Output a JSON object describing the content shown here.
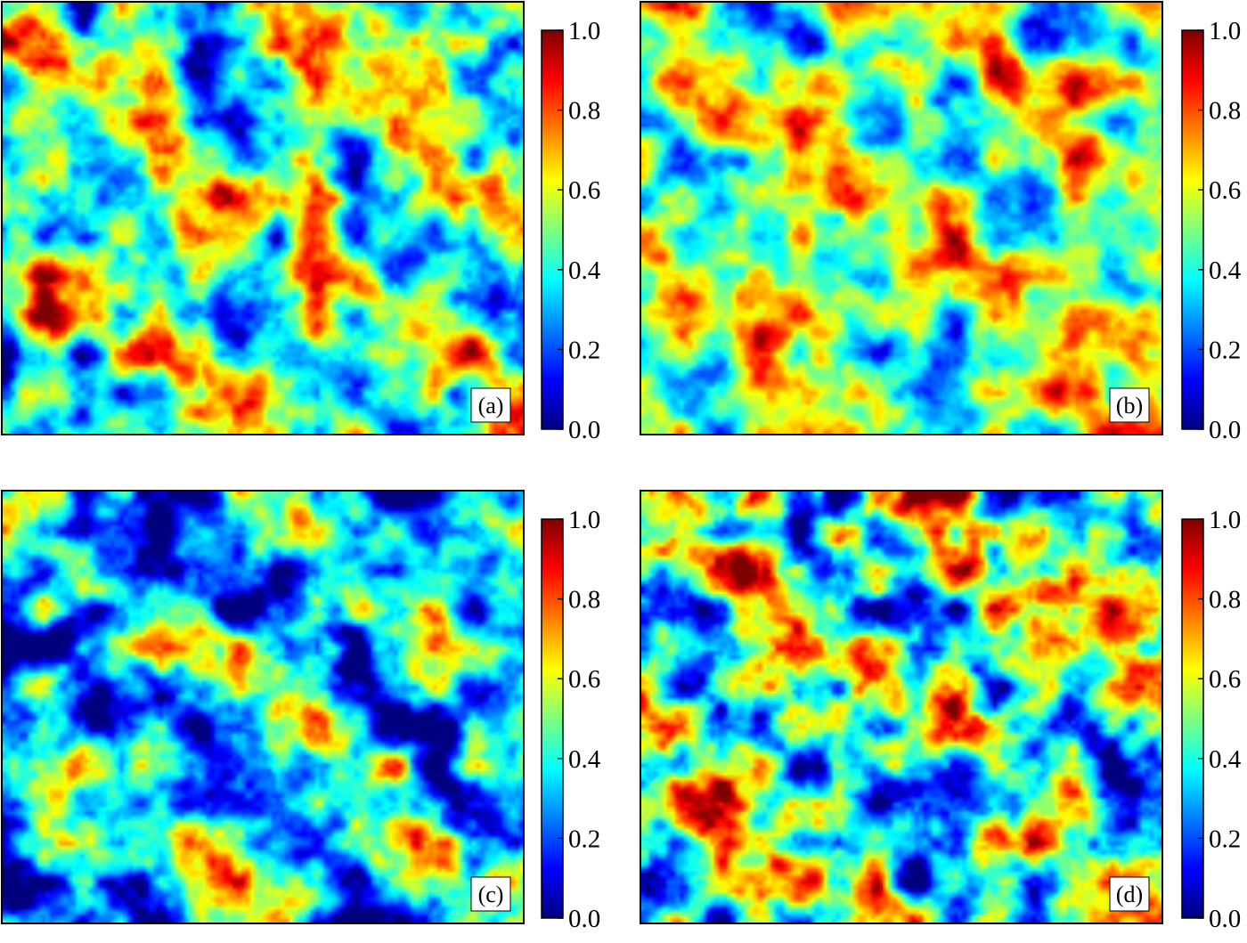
{
  "figure": {
    "colormap": "jet",
    "colormap_stops": [
      "#00007f",
      "#0000ff",
      "#007fff",
      "#00ffff",
      "#7fff7f",
      "#ffff00",
      "#ff7f00",
      "#ff0000",
      "#7f0000"
    ],
    "frame_color": "#000000",
    "label_box_color": "#ffffff"
  },
  "chart_data": [
    {
      "type": "heatmap",
      "panel_label": "(a)",
      "value_range": [
        0.0,
        1.0
      ],
      "colorbar": {
        "ticks": [
          0.0,
          0.2,
          0.4,
          0.6,
          0.8,
          1.0
        ],
        "tick_labels": [
          "0.0",
          "0.2",
          "0.4",
          "0.6",
          "0.8",
          "1.0"
        ]
      },
      "title": "",
      "xlabel": "",
      "ylabel": ""
    },
    {
      "type": "heatmap",
      "panel_label": "(b)",
      "value_range": [
        0.0,
        1.0
      ],
      "colorbar": {
        "ticks": [
          0.0,
          0.2,
          0.4,
          0.6,
          0.8,
          1.0
        ],
        "tick_labels": [
          "0.0",
          "0.2",
          "0.4",
          "0.6",
          "0.8",
          "1.0"
        ]
      },
      "title": "",
      "xlabel": "",
      "ylabel": ""
    },
    {
      "type": "heatmap",
      "panel_label": "(c)",
      "value_range": [
        0.0,
        1.0
      ],
      "colorbar": {
        "ticks": [
          0.0,
          0.2,
          0.4,
          0.6,
          0.8,
          1.0
        ],
        "tick_labels": [
          "0.0",
          "0.2",
          "0.4",
          "0.6",
          "0.8",
          "1.0"
        ]
      },
      "title": "",
      "xlabel": "",
      "ylabel": ""
    },
    {
      "type": "heatmap",
      "panel_label": "(d)",
      "value_range": [
        0.0,
        1.0
      ],
      "colorbar": {
        "ticks": [
          0.0,
          0.2,
          0.4,
          0.6,
          0.8,
          1.0
        ],
        "tick_labels": [
          "0.0",
          "0.2",
          "0.4",
          "0.6",
          "0.8",
          "1.0"
        ]
      },
      "title": "",
      "xlabel": "",
      "ylabel": ""
    }
  ]
}
